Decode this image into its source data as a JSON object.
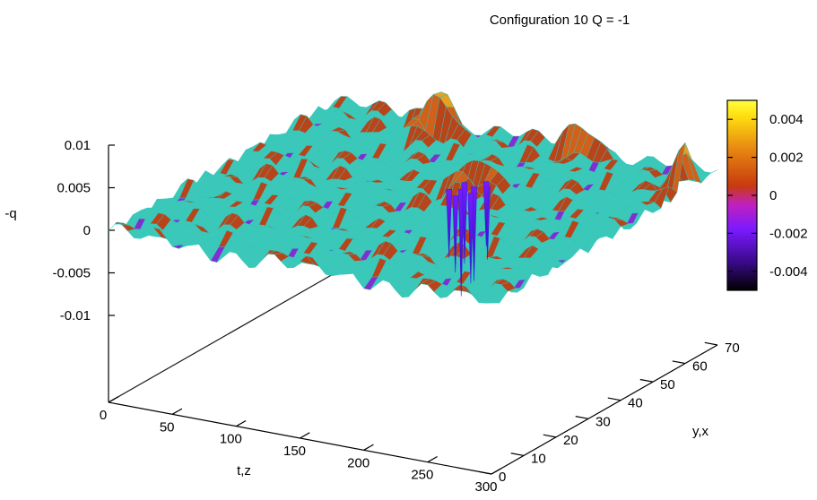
{
  "chart_data": {
    "type": "surface3d",
    "title": "Configuration  10  Q = -1",
    "zlabel": "-q",
    "xlabel": "t,z",
    "ylabel": "y,x",
    "x_ticks": [
      0,
      50,
      100,
      150,
      200,
      250,
      300
    ],
    "y_ticks": [
      0,
      10,
      20,
      30,
      40,
      50,
      60,
      70
    ],
    "z_ticks": [
      "0.01",
      "0.005",
      "0",
      "-0.005",
      "-0.01"
    ],
    "z_values": [
      0.01,
      0.005,
      0,
      -0.005,
      -0.01
    ],
    "xlim": [
      0,
      300
    ],
    "ylim": [
      0,
      70
    ],
    "zlim": [
      -0.01,
      0.01
    ],
    "colorbar": {
      "range": [
        -0.005,
        0.005
      ],
      "ticks": [
        "0.004",
        "0.002",
        "0",
        "-0.002",
        "-0.004"
      ],
      "tick_values": [
        0.004,
        0.002,
        0,
        -0.002,
        -0.004
      ],
      "colors": [
        "#000000",
        "#3a0a8a",
        "#7a1aff",
        "#c020c0",
        "#c83a10",
        "#e88a10",
        "#ffe010",
        "#ffff40"
      ]
    },
    "features": [
      {
        "t": 170,
        "y": 45,
        "value": -0.0125,
        "note": "deep negative spikes"
      },
      {
        "t": 170,
        "y": 45,
        "value": 0.004
      },
      {
        "t": 90,
        "y": 65,
        "value": 0.006
      },
      {
        "t": 300,
        "y": 60,
        "value": 0.006
      },
      {
        "t": 200,
        "y": 70,
        "value": 0.005
      }
    ],
    "mesh_color": "#2ec8c0"
  }
}
